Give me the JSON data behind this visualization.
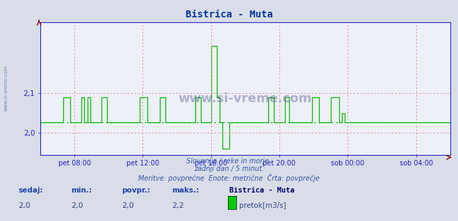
{
  "title": "Bistrica - Muta",
  "title_color": "#003399",
  "title_fontsize": 10,
  "bg_color": "#d8dde8",
  "plot_bg_color": "#eef0f8",
  "line_color": "#00bb00",
  "line_width": 1.0,
  "avg_line_color": "#00bb00",
  "avg_line_value": 2.027,
  "grid_color": "#dd8888",
  "axis_color": "#2222bb",
  "ylabel_color": "#334499",
  "xlabel_color": "#334499",
  "ylim": [
    1.945,
    2.28
  ],
  "yticks": [
    2.0,
    2.1
  ],
  "ytick_labels": [
    "2,0",
    "2,1"
  ],
  "xtick_labels": [
    "pet 08:00",
    "pet 12:00",
    "pet 16:00",
    "pet 20:00",
    "sob 00:00",
    "sob 04:00"
  ],
  "xtick_positions": [
    24,
    72,
    120,
    168,
    216,
    264
  ],
  "total_points": 288,
  "subtitle1": "Slovenija / reke in morje.",
  "subtitle2": "zadnji dan / 5 minut.",
  "subtitle3": "Meritve: povprečne  Enote: metrične  Črta: povprečje",
  "footer_label1": "sedaj:",
  "footer_label2": "min.:",
  "footer_label3": "povpr.:",
  "footer_label4": "maks.:",
  "footer_val1": "2,0",
  "footer_val2": "2,0",
  "footer_val3": "2,0",
  "footer_val4": "2,2",
  "footer_station": "Bistrica - Muta",
  "footer_series": "pretok[m3/s]",
  "watermark": "www.si-vreme.com",
  "flow_data": [
    2.027,
    2.027,
    2.027,
    2.027,
    2.027,
    2.027,
    2.027,
    2.027,
    2.027,
    2.027,
    2.027,
    2.027,
    2.027,
    2.027,
    2.027,
    2.027,
    2.09,
    2.09,
    2.09,
    2.09,
    2.09,
    2.027,
    2.027,
    2.027,
    2.027,
    2.027,
    2.027,
    2.027,
    2.027,
    2.09,
    2.09,
    2.027,
    2.027,
    2.09,
    2.09,
    2.027,
    2.027,
    2.027,
    2.027,
    2.027,
    2.027,
    2.027,
    2.027,
    2.09,
    2.09,
    2.09,
    2.09,
    2.027,
    2.027,
    2.027,
    2.027,
    2.027,
    2.027,
    2.027,
    2.027,
    2.027,
    2.027,
    2.027,
    2.027,
    2.027,
    2.027,
    2.027,
    2.027,
    2.027,
    2.027,
    2.027,
    2.027,
    2.027,
    2.027,
    2.027,
    2.09,
    2.09,
    2.09,
    2.09,
    2.09,
    2.027,
    2.027,
    2.027,
    2.027,
    2.027,
    2.027,
    2.027,
    2.027,
    2.027,
    2.09,
    2.09,
    2.09,
    2.09,
    2.027,
    2.027,
    2.027,
    2.027,
    2.027,
    2.027,
    2.027,
    2.027,
    2.027,
    2.027,
    2.027,
    2.027,
    2.027,
    2.027,
    2.027,
    2.027,
    2.027,
    2.027,
    2.027,
    2.027,
    2.027,
    2.09,
    2.09,
    2.09,
    2.09,
    2.027,
    2.027,
    2.027,
    2.027,
    2.027,
    2.027,
    2.027,
    2.22,
    2.22,
    2.22,
    2.22,
    2.09,
    2.09,
    2.027,
    2.027,
    1.96,
    1.96,
    1.96,
    1.96,
    1.96,
    2.027,
    2.027,
    2.027,
    2.027,
    2.027,
    2.027,
    2.027,
    2.027,
    2.027,
    2.027,
    2.027,
    2.027,
    2.027,
    2.027,
    2.027,
    2.027,
    2.027,
    2.027,
    2.027,
    2.027,
    2.027,
    2.027,
    2.027,
    2.027,
    2.027,
    2.027,
    2.027,
    2.09,
    2.09,
    2.09,
    2.09,
    2.027,
    2.027,
    2.027,
    2.027,
    2.027,
    2.027,
    2.027,
    2.027,
    2.09,
    2.09,
    2.09,
    2.027,
    2.027,
    2.027,
    2.027,
    2.027,
    2.027,
    2.027,
    2.027,
    2.027,
    2.027,
    2.027,
    2.027,
    2.027,
    2.027,
    2.027,
    2.027,
    2.09,
    2.09,
    2.09,
    2.09,
    2.09,
    2.027,
    2.027,
    2.027,
    2.027,
    2.027,
    2.027,
    2.027,
    2.027,
    2.09,
    2.09,
    2.09,
    2.09,
    2.09,
    2.09,
    2.027,
    2.027,
    2.05,
    2.05,
    2.027,
    2.027,
    2.027,
    2.027,
    2.027,
    2.027,
    2.027,
    2.027,
    2.027,
    2.027,
    2.027,
    2.027,
    2.027,
    2.027,
    2.027,
    2.027,
    2.027,
    2.027,
    2.027,
    2.027,
    2.027,
    2.027,
    2.027,
    2.027,
    2.027,
    2.027,
    2.027,
    2.027,
    2.027,
    2.027,
    2.027,
    2.027,
    2.027,
    2.027,
    2.027,
    2.027,
    2.027,
    2.027,
    2.027,
    2.027,
    2.027,
    2.027,
    2.027,
    2.027,
    2.027,
    2.027
  ]
}
